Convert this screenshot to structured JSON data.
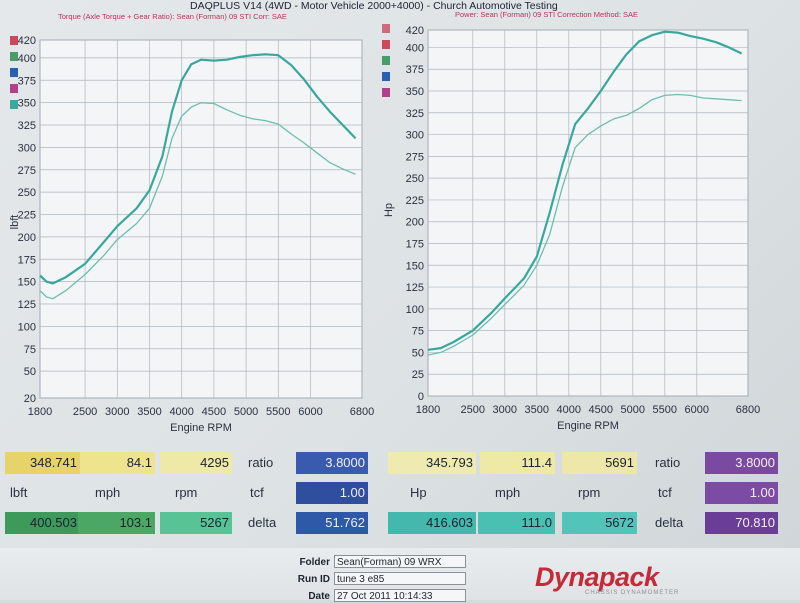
{
  "header": {
    "title": "DAQPLUS V14 (4WD - Motor Vehicle 2000+4000) - Church Automotive Testing",
    "left_caption": "Torque (Axle Torque + Gear Ratio): Sean (Forman) 09 STI     Corr: SAE",
    "right_caption": "Power: Sean (Forman) 09 STI          Correction Method: SAE"
  },
  "colors": {
    "curve_primary": "#3aa79e",
    "curve_secondary": "#6fbdb1",
    "swatches": [
      "#c94a5c",
      "#4a9a6a",
      "#2a5fb0",
      "#b0408a",
      "#3aa7a0",
      "#d06a7a"
    ]
  },
  "chart_data": [
    {
      "type": "line",
      "title": "Torque (Axle Torque + Gear Ratio): Sean (Forman) 09 STI",
      "xlabel": "Engine RPM",
      "ylabel": "lbft",
      "xlim": [
        1800,
        6800
      ],
      "ylim": [
        20,
        420
      ],
      "xticks": [
        "1800",
        "2500",
        "3000",
        "3500",
        "4000",
        "4500",
        "5000",
        "5500",
        "6000",
        "6800"
      ],
      "xtick_values": [
        1800,
        2500,
        3000,
        3500,
        4000,
        4500,
        5000,
        5500,
        6000,
        6800
      ],
      "yticks": [
        20,
        50,
        75,
        100,
        125,
        150,
        175,
        200,
        225,
        250,
        275,
        300,
        325,
        350,
        375,
        400,
        420
      ],
      "grid": true,
      "series": [
        {
          "x": [
            1800,
            1900,
            2000,
            2200,
            2500,
            2800,
            3000,
            3300,
            3500,
            3700,
            3850,
            4000,
            4150,
            4300,
            4500,
            4700,
            4900,
            5100,
            5300,
            5500,
            5700,
            5900,
            6100,
            6300,
            6500,
            6700
          ],
          "y": [
            157,
            150,
            148,
            155,
            170,
            195,
            212,
            232,
            252,
            290,
            340,
            375,
            393,
            398,
            397,
            398,
            401,
            403,
            404,
            403,
            392,
            376,
            357,
            340,
            325,
            310
          ]
        },
        {
          "x": [
            1800,
            1900,
            2000,
            2200,
            2500,
            2800,
            3000,
            3300,
            3500,
            3700,
            3850,
            4000,
            4150,
            4300,
            4500,
            4700,
            4900,
            5100,
            5300,
            5500,
            5700,
            5900,
            6100,
            6300,
            6500,
            6700
          ],
          "y": [
            140,
            133,
            131,
            140,
            158,
            180,
            197,
            215,
            232,
            268,
            310,
            335,
            345,
            350,
            349,
            342,
            336,
            332,
            330,
            326,
            315,
            305,
            294,
            283,
            276,
            270
          ]
        }
      ]
    },
    {
      "type": "line",
      "title": "Power: Sean (Forman) 09 STI",
      "xlabel": "Engine RPM",
      "ylabel": "Hp",
      "xlim": [
        1800,
        6800
      ],
      "ylim": [
        0,
        420
      ],
      "xticks": [
        "1800",
        "2500",
        "3000",
        "3500",
        "4000",
        "4500",
        "5000",
        "5500",
        "6000",
        "6800"
      ],
      "xtick_values": [
        1800,
        2500,
        3000,
        3500,
        4000,
        4500,
        5000,
        5500,
        6000,
        6800
      ],
      "yticks": [
        0,
        25,
        50,
        75,
        100,
        125,
        150,
        175,
        200,
        225,
        250,
        275,
        300,
        325,
        350,
        375,
        400,
        420
      ],
      "grid": true,
      "series": [
        {
          "x": [
            1800,
            2000,
            2200,
            2500,
            2800,
            3000,
            3300,
            3500,
            3700,
            3900,
            4100,
            4300,
            4500,
            4700,
            4900,
            5100,
            5300,
            5500,
            5700,
            5900,
            6100,
            6300,
            6500,
            6700
          ],
          "y": [
            53,
            55,
            62,
            75,
            96,
            112,
            135,
            160,
            210,
            265,
            312,
            330,
            350,
            372,
            392,
            407,
            414,
            418,
            417,
            413,
            410,
            406,
            400,
            393
          ]
        },
        {
          "x": [
            1800,
            2000,
            2200,
            2500,
            2800,
            3000,
            3300,
            3500,
            3700,
            3900,
            4100,
            4300,
            4500,
            4700,
            4900,
            5100,
            5300,
            5500,
            5700,
            5900,
            6100,
            6300,
            6500,
            6700
          ],
          "y": [
            47,
            50,
            57,
            70,
            90,
            105,
            127,
            150,
            185,
            240,
            285,
            300,
            310,
            318,
            322,
            330,
            340,
            345,
            346,
            345,
            342,
            341,
            340,
            339
          ]
        }
      ]
    }
  ],
  "readouts": {
    "torque": {
      "row1": [
        "348.741",
        "84.1",
        "4295"
      ],
      "labels": [
        "lbft",
        "mph",
        "rpm"
      ],
      "row2": [
        "400.503",
        "103.1",
        "5267"
      ],
      "ratio_label": "ratio",
      "ratio": "3.8000",
      "tcf_label": "tcf",
      "tcf": "1.00",
      "delta_label": "delta",
      "delta": "51.762"
    },
    "power": {
      "row1": [
        "345.793",
        "111.4",
        "5691"
      ],
      "labels": [
        "Hp",
        "mph",
        "rpm"
      ],
      "row2": [
        "416.603",
        "111.0",
        "5672"
      ],
      "ratio_label": "ratio",
      "ratio": "3.8000",
      "tcf_label": "tcf",
      "tcf": "1.00",
      "delta_label": "delta",
      "delta": "70.810"
    }
  },
  "footer": {
    "folder_label": "Folder",
    "folder": "Sean(Forman) 09 WRX",
    "runid_label": "Run ID",
    "runid": "tune 3 e85",
    "date_label": "Date",
    "date": "27 Oct 2011 10:14:33",
    "logo": "Dynapack",
    "logo_sub": "CHASSIS DYNAMOMETER"
  }
}
